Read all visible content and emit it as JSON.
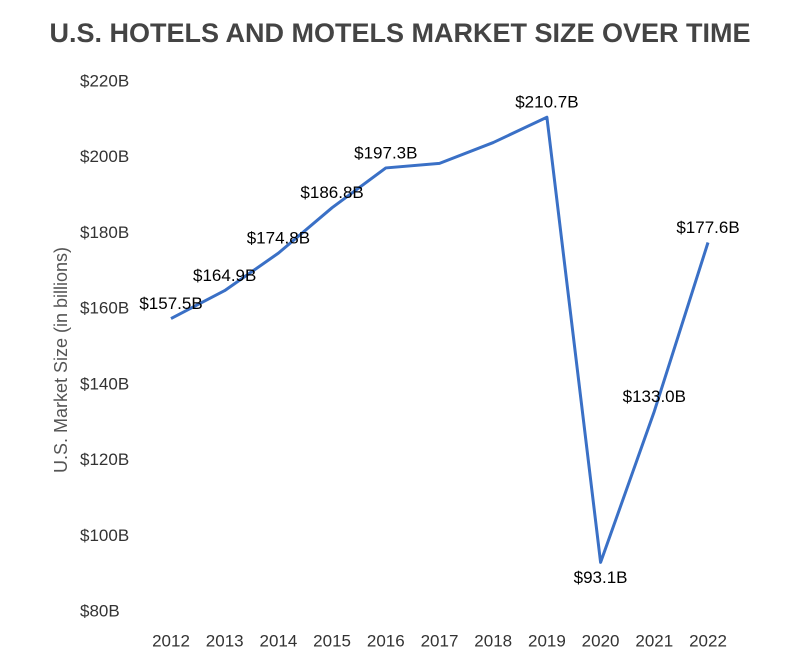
{
  "chart_data": {
    "type": "line",
    "title": "U.S. HOTELS AND MOTELS MARKET SIZE OVER TIME",
    "y_label": "U.S. Market Size (in billions)",
    "categories": [
      "2012",
      "2013",
      "2014",
      "2015",
      "2016",
      "2017",
      "2018",
      "2019",
      "2020",
      "2021",
      "2022"
    ],
    "series": [
      {
        "name": "Market size",
        "color": "#3a70c6",
        "values": [
          157.5,
          164.9,
          174.8,
          186.8,
          197.3,
          198.5,
          204,
          210.7,
          93.1,
          133.0,
          177.6
        ],
        "value_labels": [
          "$157.5B",
          "$164.9B",
          "$174.8B",
          "$186.8B",
          "$197.3B",
          null,
          null,
          "$210.7B",
          "$93.1B",
          "$133.0B",
          "$177.6B"
        ]
      }
    ],
    "ylim": [
      80,
      220
    ],
    "yticks": [
      {
        "value": 80,
        "label": "$80B"
      },
      {
        "value": 100,
        "label": "$100B"
      },
      {
        "value": 120,
        "label": "$120B"
      },
      {
        "value": 140,
        "label": "$140B"
      },
      {
        "value": 160,
        "label": "$160B"
      },
      {
        "value": 180,
        "label": "$180B"
      },
      {
        "value": 200,
        "label": "$200B"
      },
      {
        "value": 220,
        "label": "$220B"
      }
    ],
    "grid": false
  }
}
